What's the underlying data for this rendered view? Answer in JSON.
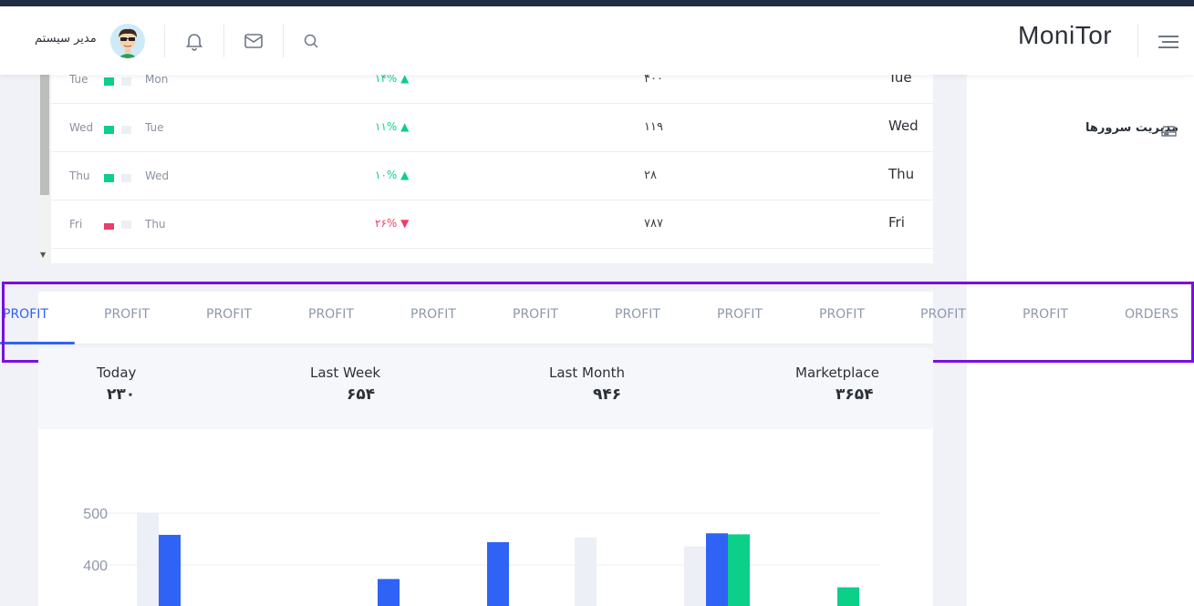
{
  "header": {
    "brand": "MoniTor",
    "user_name": "مدیر سیستم"
  },
  "sidebar": {
    "items": [
      {
        "label": "مدیریت سرورها",
        "icon": "server-icon"
      }
    ]
  },
  "table": {
    "rows": [
      {
        "from": "Tue",
        "to": "Mon",
        "trend": "up",
        "change": "۱۴%",
        "value": "۴۰۰",
        "day": "Tue"
      },
      {
        "from": "Wed",
        "to": "Tue",
        "trend": "up",
        "change": "۱۱%",
        "value": "۱۱۹",
        "day": "Wed"
      },
      {
        "from": "Thu",
        "to": "Wed",
        "trend": "up",
        "change": "۱۰%",
        "value": "۲۸",
        "day": "Thu"
      },
      {
        "from": "Fri",
        "to": "Thu",
        "trend": "down",
        "change": "۲۶%",
        "value": "۷۸۷",
        "day": "Fri"
      }
    ]
  },
  "tabs": [
    {
      "label": "PROFIT",
      "active": true
    },
    {
      "label": "PROFIT"
    },
    {
      "label": "PROFIT"
    },
    {
      "label": "PROFIT"
    },
    {
      "label": "PROFIT"
    },
    {
      "label": "PROFIT"
    },
    {
      "label": "PROFIT"
    },
    {
      "label": "PROFIT"
    },
    {
      "label": "PROFIT"
    },
    {
      "label": "PROFIT"
    },
    {
      "label": "PROFIT"
    },
    {
      "label": "ORDERS"
    }
  ],
  "stats": [
    {
      "label": "Today",
      "value": "۲۳۰"
    },
    {
      "label": "Last Week",
      "value": "۶۵۴"
    },
    {
      "label": "Last Month",
      "value": "۹۴۶"
    },
    {
      "label": "Marketplace",
      "value": "۳۶۵۴"
    }
  ],
  "colors": {
    "accent": "#2f63f5",
    "up": "#0ccf8a",
    "down": "#ef3d6a",
    "highlight": "#7a0fe0",
    "bar_gray": "#eceff5",
    "bar_green": "#0ccf8a"
  },
  "chart_data": {
    "type": "bar",
    "title": "",
    "xlabel": "",
    "ylabel": "",
    "ylim": [
      300,
      500
    ],
    "yticks": [
      400,
      500
    ],
    "groups": [
      {
        "bars": [
          {
            "series": "gray",
            "value": 500
          },
          {
            "series": "blue",
            "value": 458
          }
        ]
      },
      {
        "bars": [
          {
            "series": "blue",
            "value": 373
          }
        ]
      },
      {
        "bars": [
          {
            "series": "blue",
            "value": 444
          }
        ]
      },
      {
        "bars": [
          {
            "series": "gray",
            "value": 453
          }
        ]
      },
      {
        "bars": [
          {
            "series": "gray",
            "value": 436
          },
          {
            "series": "blue",
            "value": 461
          },
          {
            "series": "green",
            "value": 459
          }
        ]
      },
      {
        "bars": [
          {
            "series": "green",
            "value": 357
          }
        ]
      }
    ]
  }
}
